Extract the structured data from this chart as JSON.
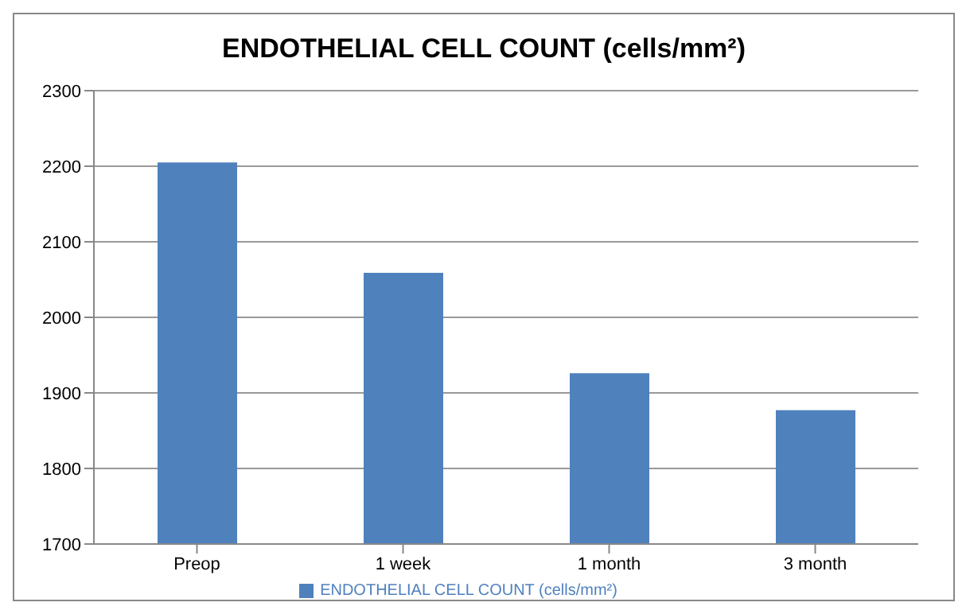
{
  "chart_data": {
    "type": "bar",
    "title": "ENDOTHELIAL CELL COUNT  (cells/mm²)",
    "categories": [
      "Preop",
      "1 week",
      "1 month",
      "3 month"
    ],
    "series": [
      {
        "name": "ENDOTHELIAL CELL COUNT  (cells/mm²)",
        "color": "#4f81bd",
        "values": [
          2205,
          2059,
          1926,
          1877
        ]
      }
    ],
    "ylim": [
      1700,
      2300
    ],
    "yticks": [
      1700,
      1800,
      1900,
      2000,
      2100,
      2200,
      2300
    ],
    "grid": "y",
    "legend": "bottom"
  }
}
